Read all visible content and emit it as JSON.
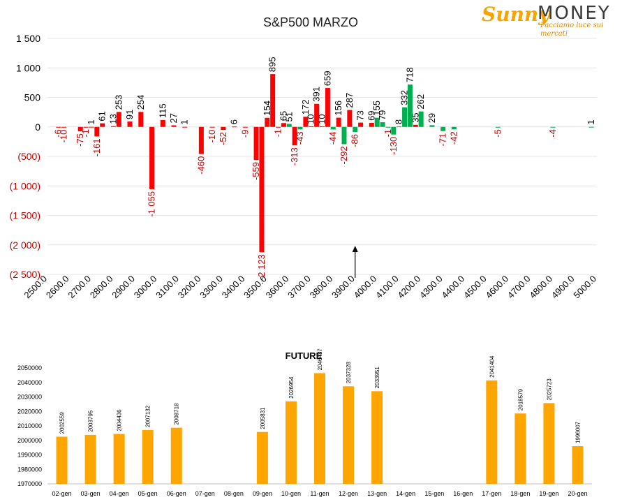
{
  "logo": {
    "brand_a": "Sunny",
    "brand_b": "MONEY",
    "tagline": "Facciamo luce sui mercati"
  },
  "colors": {
    "positive": "#ff0000",
    "negative": "#00b050",
    "future_bar": "#ffa500",
    "axis_negative_label": "#c00000"
  },
  "chart_data": [
    {
      "type": "bar",
      "title": "S&P500 MARZO",
      "ylim": [
        -2500,
        1500
      ],
      "yticks": [
        1500,
        1000,
        500,
        0,
        -500,
        -1000,
        -1500,
        -2000,
        -2500
      ],
      "ytick_labels": [
        "1 500",
        "1 000",
        "500",
        "0",
        "(500)",
        "(1 000)",
        "(1 500)",
        "(2 000)",
        "(2 500)"
      ],
      "x_tick_labels": [
        "2500.0",
        "2600.0",
        "2700.0",
        "2800.0",
        "2900.0",
        "3000.0",
        "3100.0",
        "3200.0",
        "3300.0",
        "3400.0",
        "3500.0",
        "3600.0",
        "3700.0",
        "3800.0",
        "3900.0",
        "4000.0",
        "4100.0",
        "4200.0",
        "4300.0",
        "4400.0",
        "4500.0",
        "4600.0",
        "4700.0",
        "4800.0",
        "4900.0",
        "5000.0"
      ],
      "x_range": [
        2500,
        5000
      ],
      "annotation": "arrow at 3900",
      "series": [
        {
          "color": "#ff0000",
          "points": [
            {
              "x": 2550,
              "y": -6,
              "label": "-6"
            },
            {
              "x": 2575,
              "y": -10,
              "label": "-10"
            },
            {
              "x": 2650,
              "y": -75,
              "label": "-75"
            },
            {
              "x": 2675,
              "y": -1,
              "label": "-1"
            },
            {
              "x": 2700,
              "y": 1,
              "label": "1"
            },
            {
              "x": 2725,
              "y": -161,
              "label": "-161"
            },
            {
              "x": 2750,
              "y": 61,
              "label": "61"
            },
            {
              "x": 2800,
              "y": 13,
              "label": "13"
            },
            {
              "x": 2825,
              "y": 253,
              "label": "253"
            },
            {
              "x": 2875,
              "y": 91,
              "label": "91"
            },
            {
              "x": 2925,
              "y": 254,
              "label": "254"
            },
            {
              "x": 2975,
              "y": -1055,
              "label": "-1 055"
            },
            {
              "x": 3025,
              "y": 115,
              "label": "115"
            },
            {
              "x": 3075,
              "y": 27,
              "label": "27"
            },
            {
              "x": 3125,
              "y": 1,
              "label": "1"
            },
            {
              "x": 3200,
              "y": -460,
              "label": "-460"
            },
            {
              "x": 3250,
              "y": -10,
              "label": "-10"
            },
            {
              "x": 3300,
              "y": -52,
              "label": "-52"
            },
            {
              "x": 3350,
              "y": 6,
              "label": "6"
            },
            {
              "x": 3400,
              "y": -9,
              "label": "-9"
            },
            {
              "x": 3450,
              "y": -559,
              "label": "-559"
            },
            {
              "x": 3500,
              "y": 154,
              "label": "154"
            },
            {
              "x": 3475,
              "y": -2123,
              "label": "-2 123"
            },
            {
              "x": 3525,
              "y": 895,
              "label": "895"
            },
            {
              "x": 3550,
              "y": -1,
              "label": "-1"
            },
            {
              "x": 3575,
              "y": 65,
              "label": "65"
            },
            {
              "x": 3625,
              "y": -313,
              "label": "-313"
            },
            {
              "x": 3675,
              "y": 172,
              "label": "172"
            },
            {
              "x": 3700,
              "y": 10,
              "label": "10"
            },
            {
              "x": 3725,
              "y": 391,
              "label": "391"
            },
            {
              "x": 3750,
              "y": 10,
              "label": "10"
            },
            {
              "x": 3775,
              "y": 659,
              "label": "659"
            },
            {
              "x": 3825,
              "y": 156,
              "label": "156"
            },
            {
              "x": 3875,
              "y": 287,
              "label": "287"
            },
            {
              "x": 3925,
              "y": 73,
              "label": "73"
            },
            {
              "x": 3975,
              "y": 69,
              "label": "69"
            },
            {
              "x": 4175,
              "y": 35,
              "label": "35"
            }
          ]
        },
        {
          "color": "#00b050",
          "points": [
            {
              "x": 3600,
              "y": 51,
              "label": "51"
            },
            {
              "x": 3650,
              "y": -43,
              "label": "-43"
            },
            {
              "x": 3800,
              "y": -44,
              "label": "-44"
            },
            {
              "x": 3850,
              "y": -292,
              "label": "-292"
            },
            {
              "x": 3900,
              "y": -86,
              "label": "-86"
            },
            {
              "x": 4000,
              "y": 155,
              "label": "155"
            },
            {
              "x": 4025,
              "y": 79,
              "label": "79"
            },
            {
              "x": 4050,
              "y": -1,
              "label": "-1"
            },
            {
              "x": 4075,
              "y": -130,
              "label": "-130"
            },
            {
              "x": 4100,
              "y": 8,
              "label": "8"
            },
            {
              "x": 4125,
              "y": 332,
              "label": "332"
            },
            {
              "x": 4150,
              "y": 718,
              "label": "718"
            },
            {
              "x": 4200,
              "y": 262,
              "label": "262"
            },
            {
              "x": 4250,
              "y": 29,
              "label": "29"
            },
            {
              "x": 4300,
              "y": -71,
              "label": "-71"
            },
            {
              "x": 4350,
              "y": -42,
              "label": "-42"
            },
            {
              "x": 4550,
              "y": -5,
              "label": "-5"
            },
            {
              "x": 4800,
              "y": -4,
              "label": "-4"
            },
            {
              "x": 4975,
              "y": 1,
              "label": "1"
            }
          ]
        }
      ]
    },
    {
      "type": "bar",
      "title": "FUTURE",
      "ylim": [
        1970000,
        2050000
      ],
      "yticks": [
        1970000,
        1980000,
        1990000,
        2000000,
        2010000,
        2020000,
        2030000,
        2040000,
        2050000
      ],
      "ytick_labels": [
        "1970000",
        "1980000",
        "1990000",
        "2000000",
        "2010000",
        "2020000",
        "2030000",
        "2040000",
        "2050000"
      ],
      "categories": [
        "02-gen",
        "03-gen",
        "04-gen",
        "05-gen",
        "06-gen",
        "07-gen",
        "08-gen",
        "09-gen",
        "10-gen",
        "11-gen",
        "12-gen",
        "13-gen",
        "14-gen",
        "15-gen",
        "16-gen",
        "17-gen",
        "18-gen",
        "19-gen",
        "20-gen"
      ],
      "values": [
        2002559,
        2003795,
        2004436,
        2007132,
        2008718,
        null,
        null,
        2005831,
        2026954,
        2046437,
        2037328,
        2033951,
        null,
        null,
        null,
        2041404,
        2018579,
        2025723,
        1996007
      ],
      "value_labels": [
        "2002559",
        "2003795",
        "2004436",
        "2007132",
        "2008718",
        "",
        "",
        "2005831",
        "2026954",
        "2046437",
        "2037328",
        "2033951",
        "",
        "",
        "",
        "2041404",
        "2018579",
        "2025723",
        "1996007"
      ]
    }
  ]
}
